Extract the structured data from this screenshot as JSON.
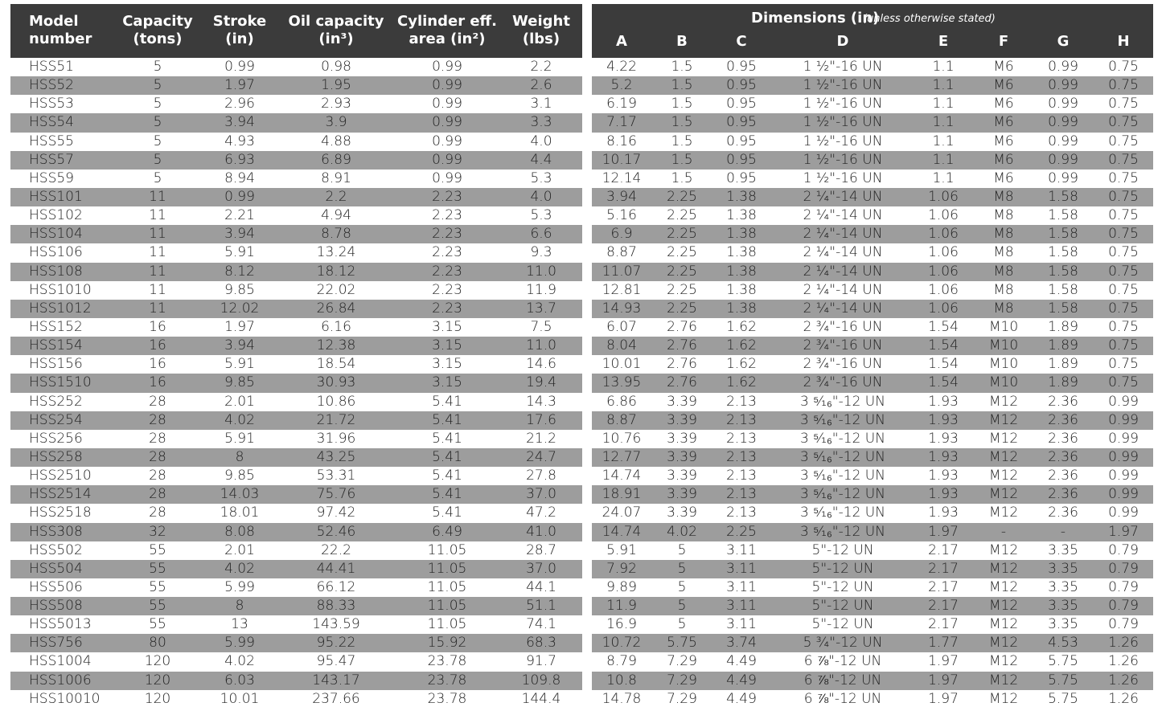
{
  "left_table": {
    "headers": [
      [
        "Model",
        "number"
      ],
      [
        "Capacity",
        "(tons)"
      ],
      [
        "Stroke",
        "(in)"
      ],
      [
        "Oil capacity",
        "(in³)"
      ],
      [
        "Cylinder eff.",
        "area (in²)"
      ],
      [
        "Weight",
        "(lbs)"
      ]
    ],
    "rows": [
      [
        "HSS51",
        "5",
        "0.99",
        "0.98",
        "0.99",
        "2.2"
      ],
      [
        "HSS52",
        "5",
        "1.97",
        "1.95",
        "0.99",
        "2.6"
      ],
      [
        "HSS53",
        "5",
        "2.96",
        "2.93",
        "0.99",
        "3.1"
      ],
      [
        "HSS54",
        "5",
        "3.94",
        "3.9",
        "0.99",
        "3.3"
      ],
      [
        "HSS55",
        "5",
        "4.93",
        "4.88",
        "0.99",
        "4.0"
      ],
      [
        "HSS57",
        "5",
        "6.93",
        "6.89",
        "0.99",
        "4.4"
      ],
      [
        "HSS59",
        "5",
        "8.94",
        "8.91",
        "0.99",
        "5.3"
      ],
      [
        "HSS101",
        "11",
        "0.99",
        "2.2",
        "2.23",
        "4.0"
      ],
      [
        "HSS102",
        "11",
        "2.21",
        "4.94",
        "2.23",
        "5.3"
      ],
      [
        "HSS104",
        "11",
        "3.94",
        "8.78",
        "2.23",
        "6.6"
      ],
      [
        "HSS106",
        "11",
        "5.91",
        "13.24",
        "2.23",
        "9.3"
      ],
      [
        "HSS108",
        "11",
        "8.12",
        "18.12",
        "2.23",
        "11.0"
      ],
      [
        "HSS1010",
        "11",
        "9.85",
        "22.02",
        "2.23",
        "11.9"
      ],
      [
        "HSS1012",
        "11",
        "12.02",
        "26.84",
        "2.23",
        "13.7"
      ],
      [
        "HSS152",
        "16",
        "1.97",
        "6.16",
        "3.15",
        "7.5"
      ],
      [
        "HSS154",
        "16",
        "3.94",
        "12.38",
        "3.15",
        "11.0"
      ],
      [
        "HSS156",
        "16",
        "5.91",
        "18.54",
        "3.15",
        "14.6"
      ],
      [
        "HSS1510",
        "16",
        "9.85",
        "30.93",
        "3.15",
        "19.4"
      ],
      [
        "HSS252",
        "28",
        "2.01",
        "10.86",
        "5.41",
        "14.3"
      ],
      [
        "HSS254",
        "28",
        "4.02",
        "21.72",
        "5.41",
        "17.6"
      ],
      [
        "HSS256",
        "28",
        "5.91",
        "31.96",
        "5.41",
        "21.2"
      ],
      [
        "HSS258",
        "28",
        "8",
        "43.25",
        "5.41",
        "24.7"
      ],
      [
        "HSS2510",
        "28",
        "9.85",
        "53.31",
        "5.41",
        "27.8"
      ],
      [
        "HSS2514",
        "28",
        "14.03",
        "75.76",
        "5.41",
        "37.0"
      ],
      [
        "HSS2518",
        "28",
        "18.01",
        "97.42",
        "5.41",
        "47.2"
      ],
      [
        "HSS308",
        "32",
        "8.08",
        "52.46",
        "6.49",
        "41.0"
      ],
      [
        "HSS502",
        "55",
        "2.01",
        "22.2",
        "11.05",
        "28.7"
      ],
      [
        "HSS504",
        "55",
        "4.02",
        "44.41",
        "11.05",
        "37.0"
      ],
      [
        "HSS506",
        "55",
        "5.99",
        "66.12",
        "11.05",
        "44.1"
      ],
      [
        "HSS508",
        "55",
        "8",
        "88.33",
        "11.05",
        "51.1"
      ],
      [
        "HSS5013",
        "55",
        "13",
        "143.59",
        "11.05",
        "74.1"
      ],
      [
        "HSS756",
        "80",
        "5.99",
        "95.22",
        "15.92",
        "68.3"
      ],
      [
        "HSS1004",
        "120",
        "4.02",
        "95.47",
        "23.78",
        "91.7"
      ],
      [
        "HSS1006",
        "120",
        "6.03",
        "143.17",
        "23.78",
        "109.8"
      ],
      [
        "HSS10010",
        "120",
        "10.01",
        "237.66",
        "23.78",
        "144.4"
      ]
    ]
  },
  "right_table": {
    "title": "Dimensions (in)",
    "subtitle": "(unless otherwise stated)",
    "headers": [
      "A",
      "B",
      "C",
      "D",
      "E",
      "F",
      "G",
      "H"
    ],
    "rows": [
      [
        "4.22",
        "1.5",
        "0.95",
        "1 ½\"-16 UN",
        "1.1",
        "M6",
        "0.99",
        "0.75"
      ],
      [
        "5.2",
        "1.5",
        "0.95",
        "1 ½\"-16 UN",
        "1.1",
        "M6",
        "0.99",
        "0.75"
      ],
      [
        "6.19",
        "1.5",
        "0.95",
        "1 ½\"-16 UN",
        "1.1",
        "M6",
        "0.99",
        "0.75"
      ],
      [
        "7.17",
        "1.5",
        "0.95",
        "1 ½\"-16 UN",
        "1.1",
        "M6",
        "0.99",
        "0.75"
      ],
      [
        "8.16",
        "1.5",
        "0.95",
        "1 ½\"-16 UN",
        "1.1",
        "M6",
        "0.99",
        "0.75"
      ],
      [
        "10.17",
        "1.5",
        "0.95",
        "1 ½\"-16 UN",
        "1.1",
        "M6",
        "0.99",
        "0.75"
      ],
      [
        "12.14",
        "1.5",
        "0.95",
        "1 ½\"-16 UN",
        "1.1",
        "M6",
        "0.99",
        "0.75"
      ],
      [
        "3.94",
        "2.25",
        "1.38",
        "2 ¼\"-14 UN",
        "1.06",
        "M8",
        "1.58",
        "0.75"
      ],
      [
        "5.16",
        "2.25",
        "1.38",
        "2 ¼\"-14 UN",
        "1.06",
        "M8",
        "1.58",
        "0.75"
      ],
      [
        "6.9",
        "2.25",
        "1.38",
        "2 ¼\"-14 UN",
        "1.06",
        "M8",
        "1.58",
        "0.75"
      ],
      [
        "8.87",
        "2.25",
        "1.38",
        "2 ¼\"-14 UN",
        "1.06",
        "M8",
        "1.58",
        "0.75"
      ],
      [
        "11.07",
        "2.25",
        "1.38",
        "2 ¼\"-14 UN",
        "1.06",
        "M8",
        "1.58",
        "0.75"
      ],
      [
        "12.81",
        "2.25",
        "1.38",
        "2 ¼\"-14 UN",
        "1.06",
        "M8",
        "1.58",
        "0.75"
      ],
      [
        "14.93",
        "2.25",
        "1.38",
        "2 ¼\"-14 UN",
        "1.06",
        "M8",
        "1.58",
        "0.75"
      ],
      [
        "6.07",
        "2.76",
        "1.62",
        "2 ¾\"-16 UN",
        "1.54",
        "M10",
        "1.89",
        "0.75"
      ],
      [
        "8.04",
        "2.76",
        "1.62",
        "2 ¾\"-16 UN",
        "1.54",
        "M10",
        "1.89",
        "0.75"
      ],
      [
        "10.01",
        "2.76",
        "1.62",
        "2 ¾\"-16 UN",
        "1.54",
        "M10",
        "1.89",
        "0.75"
      ],
      [
        "13.95",
        "2.76",
        "1.62",
        "2 ¾\"-16 UN",
        "1.54",
        "M10",
        "1.89",
        "0.75"
      ],
      [
        "6.86",
        "3.39",
        "2.13",
        "3 ⁵⁄₁₆\"-12 UN",
        "1.93",
        "M12",
        "2.36",
        "0.99"
      ],
      [
        "8.87",
        "3.39",
        "2.13",
        "3 ⁵⁄₁₆\"-12 UN",
        "1.93",
        "M12",
        "2.36",
        "0.99"
      ],
      [
        "10.76",
        "3.39",
        "2.13",
        "3 ⁵⁄₁₆\"-12 UN",
        "1.93",
        "M12",
        "2.36",
        "0.99"
      ],
      [
        "12.77",
        "3.39",
        "2.13",
        "3 ⁵⁄₁₆\"-12 UN",
        "1.93",
        "M12",
        "2.36",
        "0.99"
      ],
      [
        "14.74",
        "3.39",
        "2.13",
        "3 ⁵⁄₁₆\"-12 UN",
        "1.93",
        "M12",
        "2.36",
        "0.99"
      ],
      [
        "18.91",
        "3.39",
        "2.13",
        "3 ⁵⁄₁₆\"-12 UN",
        "1.93",
        "M12",
        "2.36",
        "0.99"
      ],
      [
        "24.07",
        "3.39",
        "2.13",
        "3 ⁵⁄₁₆\"-12 UN",
        "1.93",
        "M12",
        "2.36",
        "0.99"
      ],
      [
        "14.74",
        "4.02",
        "2.25",
        "3 ⁵⁄₁₆\"-12 UN",
        "1.97",
        "-",
        "-",
        "1.97"
      ],
      [
        "5.91",
        "5",
        "3.11",
        "5\"-12 UN",
        "2.17",
        "M12",
        "3.35",
        "0.79"
      ],
      [
        "7.92",
        "5",
        "3.11",
        "5\"-12 UN",
        "2.17",
        "M12",
        "3.35",
        "0.79"
      ],
      [
        "9.89",
        "5",
        "3.11",
        "5\"-12 UN",
        "2.17",
        "M12",
        "3.35",
        "0.79"
      ],
      [
        "11.9",
        "5",
        "3.11",
        "5\"-12 UN",
        "2.17",
        "M12",
        "3.35",
        "0.79"
      ],
      [
        "16.9",
        "5",
        "3.11",
        "5\"-12 UN",
        "2.17",
        "M12",
        "3.35",
        "0.79"
      ],
      [
        "10.72",
        "5.75",
        "3.74",
        "5 ¾\"-12 UN",
        "1.77",
        "M12",
        "4.53",
        "1.26"
      ],
      [
        "8.79",
        "7.29",
        "4.49",
        "6 ⅞\"-12 UN",
        "1.97",
        "M12",
        "5.75",
        "1.26"
      ],
      [
        "10.8",
        "7.29",
        "4.49",
        "6 ⅞\"-12 UN",
        "1.97",
        "M12",
        "5.75",
        "1.26"
      ],
      [
        "14.78",
        "7.29",
        "4.49",
        "6 ⅞\"-12 UN",
        "1.97",
        "M12",
        "5.75",
        "1.26"
      ]
    ]
  }
}
